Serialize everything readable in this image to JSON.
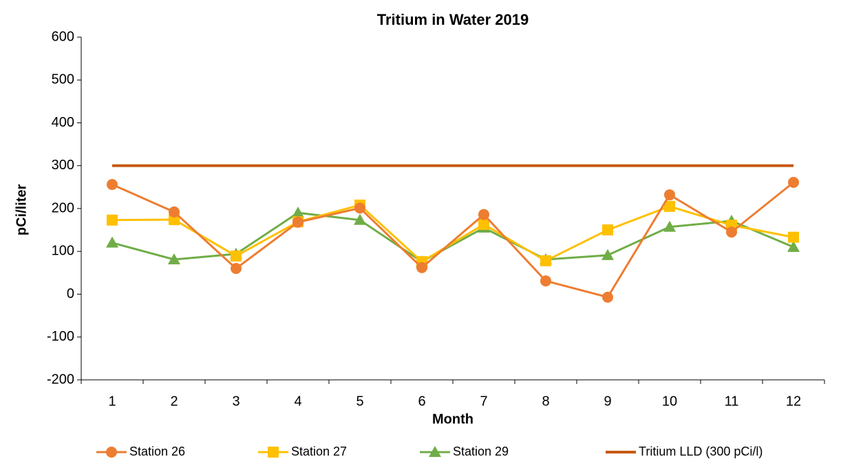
{
  "chart_data": {
    "type": "line",
    "title": "Tritium in Water 2019",
    "x_label": "Month",
    "y_label": "pCi/liter",
    "categories": [
      "1",
      "2",
      "3",
      "4",
      "5",
      "6",
      "7",
      "8",
      "9",
      "10",
      "11",
      "12"
    ],
    "series": [
      {
        "name": "Station 26",
        "color": "#ed7d31",
        "marker": "circle",
        "values": [
          256,
          192,
          60,
          168,
          201,
          62,
          186,
          31,
          -7,
          232,
          145,
          261
        ]
      },
      {
        "name": "Station 27",
        "color": "#ffc000",
        "marker": "square",
        "values": [
          173,
          174,
          89,
          169,
          208,
          76,
          163,
          78,
          150,
          205,
          161,
          133
        ]
      },
      {
        "name": "Station 29",
        "color": "#70ad47",
        "marker": "triangle",
        "values": [
          120,
          81,
          94,
          190,
          173,
          76,
          155,
          81,
          91,
          157,
          171,
          110
        ]
      },
      {
        "name": "Tritium LLD (300 pCi/l)",
        "color": "#c55a11",
        "marker": "none",
        "values": [
          300,
          300,
          300,
          300,
          300,
          300,
          300,
          300,
          300,
          300,
          300,
          300
        ]
      }
    ],
    "ylim": [
      -200,
      600
    ],
    "yticks": [
      -200,
      -100,
      0,
      100,
      200,
      300,
      400,
      500,
      600
    ],
    "grid": false,
    "legend": "bottom"
  }
}
